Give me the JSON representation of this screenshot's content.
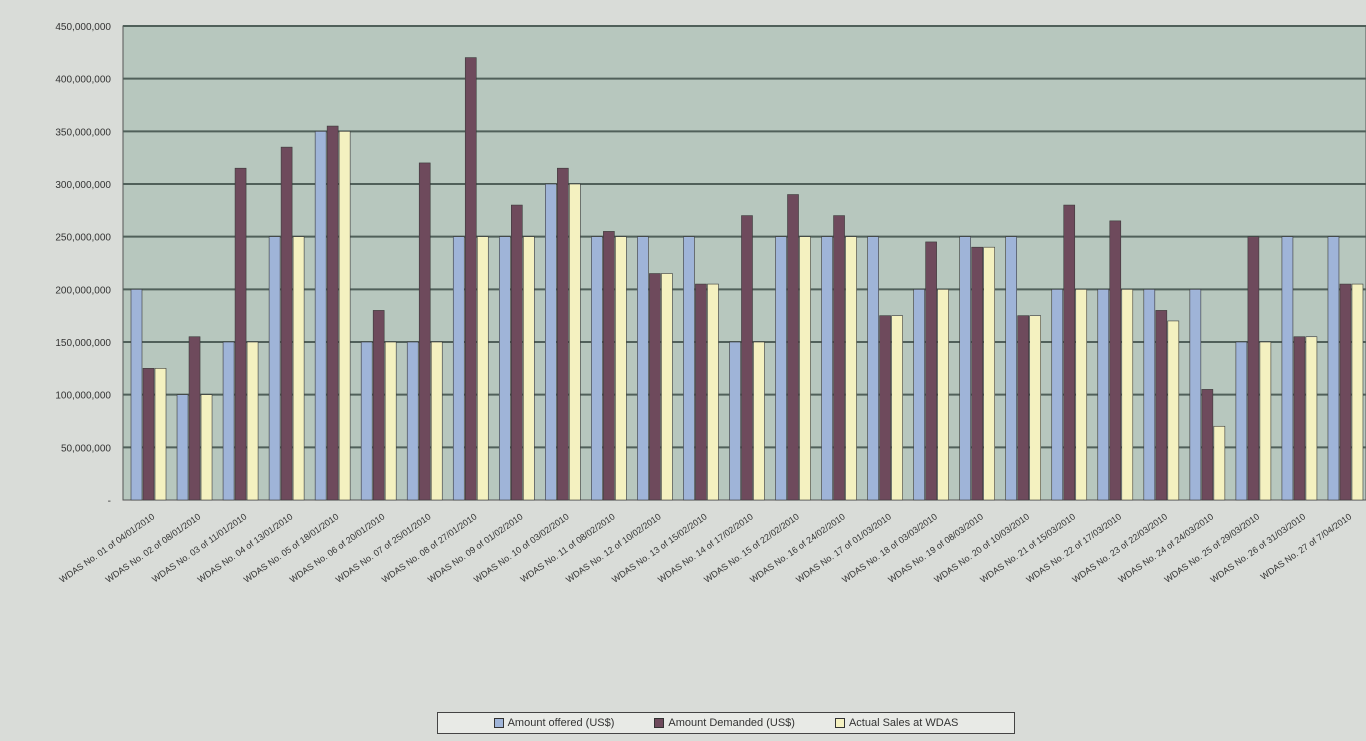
{
  "chart_data": {
    "type": "bar",
    "ylim": [
      0,
      450000000
    ],
    "yticks": [
      "450,000,000",
      "400,000,000",
      "350,000,000",
      "300,000,000",
      "250,000,000",
      "200,000,000",
      "150,000,000",
      "100,000,000",
      "50,000,000",
      "-"
    ],
    "ytick_values": [
      450000000,
      400000000,
      350000000,
      300000000,
      250000000,
      200000000,
      150000000,
      100000000,
      50000000,
      0
    ],
    "grid": true,
    "legend_position": "bottom",
    "categories": [
      "WDAS No. 01 of 04/01/2010",
      "WDAS No. 02 of 08/01/2010",
      "WDAS No. 03 of 11/01/2010",
      "WDAS No. 04 of 13/01/2010",
      "WDAS No. 05 of 18/01/2010",
      "WDAS No. 06 of 20/01/2010",
      "WDAS No. 07 of 25/01/2010",
      "WDAS No. 08 of 27/01/2010",
      "WDAS No. 09 of 01/02/2010",
      "WDAS No. 10 of 03/02/2010",
      "WDAS No. 11 of 08/02/2010",
      "WDAS No. 12 of 10/02/2010",
      "WDAS No. 13 of 15/02/2010",
      "WDAS No. 14 of 17/02/2010",
      "WDAS No. 15 of 22/02/2010",
      "WDAS No. 16 of 24/02/2010",
      "WDAS No. 17 of 01/03/2010",
      "WDAS No. 18 of 03/03/2010",
      "WDAS No. 19 of 08/03/2010",
      "WDAS No. 20 of 10/03/2010",
      "WDAS No. 21 of 15/03/2010",
      "WDAS No. 22 of 17/03/2010",
      "WDAS No. 23 of 22/03/2010",
      "WDAS No. 24 of 24/03/2010",
      "WDAS No. 25 of 29/03/2010",
      "WDAS No. 26 of 31/03/2010",
      "WDAS No. 27 of 7/04/2010"
    ],
    "series": [
      {
        "name": "Amount offered (US$)",
        "color": "#9fb4d8",
        "values": [
          200000000,
          100000000,
          150000000,
          250000000,
          350000000,
          150000000,
          150000000,
          250000000,
          250000000,
          300000000,
          250000000,
          250000000,
          250000000,
          150000000,
          250000000,
          250000000,
          250000000,
          200000000,
          250000000,
          250000000,
          200000000,
          200000000,
          200000000,
          200000000,
          150000000,
          250000000,
          250000000
        ]
      },
      {
        "name": "Amount Demanded (US$)",
        "color": "#6e4a5c",
        "values": [
          125000000,
          155000000,
          315000000,
          335000000,
          355000000,
          180000000,
          320000000,
          420000000,
          280000000,
          315000000,
          255000000,
          215000000,
          205000000,
          270000000,
          290000000,
          270000000,
          175000000,
          245000000,
          240000000,
          175000000,
          280000000,
          265000000,
          180000000,
          105000000,
          250000000,
          155000000,
          205000000
        ]
      },
      {
        "name": "Actual Sales at WDAS",
        "color": "#f4f1c0",
        "values": [
          125000000,
          100000000,
          150000000,
          250000000,
          350000000,
          150000000,
          150000000,
          250000000,
          250000000,
          300000000,
          250000000,
          215000000,
          205000000,
          150000000,
          250000000,
          250000000,
          175000000,
          200000000,
          240000000,
          175000000,
          200000000,
          200000000,
          170000000,
          70000000,
          150000000,
          155000000,
          205000000
        ]
      }
    ]
  }
}
